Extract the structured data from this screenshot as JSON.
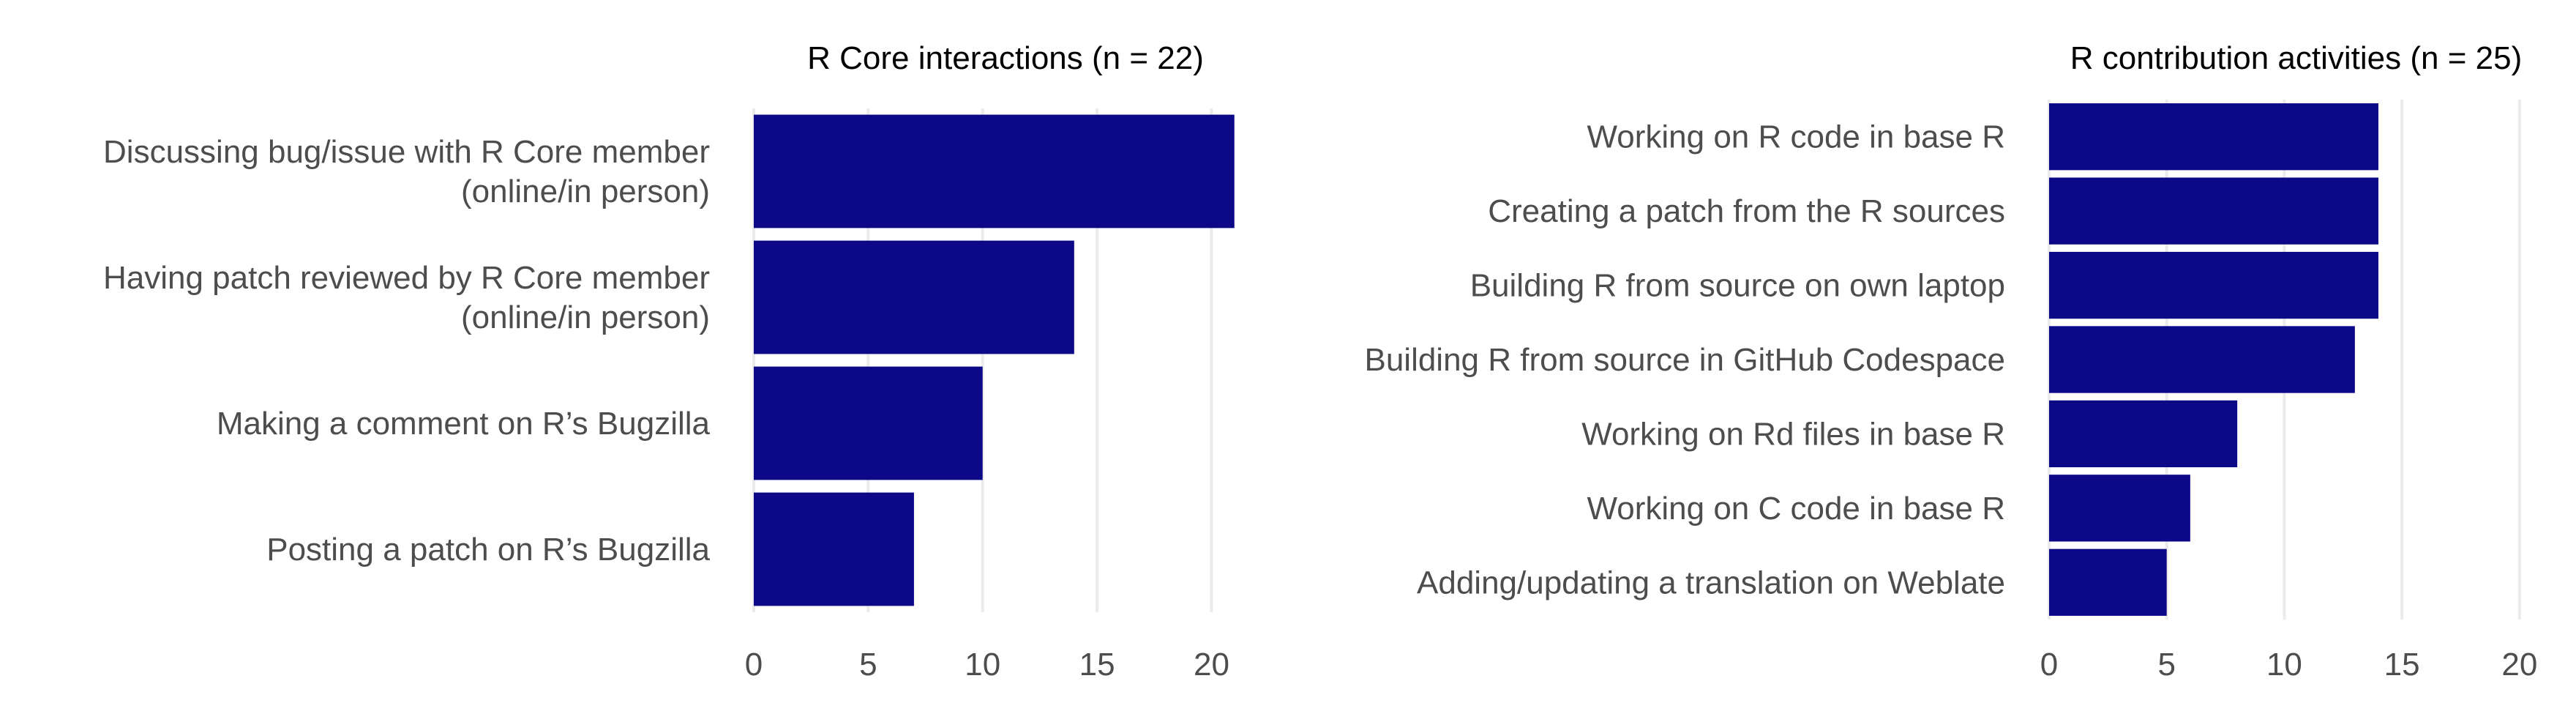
{
  "chart_data": [
    {
      "type": "bar",
      "orientation": "horizontal",
      "title": "R Core interactions (n = 22)",
      "categories": [
        [
          "Discussing bug/issue with R Core member",
          "(online/in person)"
        ],
        [
          "Having patch reviewed by R Core member",
          "(online/in person)"
        ],
        [
          "Making a comment on R’s Bugzilla"
        ],
        [
          "Posting a patch on R’s Bugzilla"
        ]
      ],
      "values": [
        21,
        14,
        10,
        7
      ],
      "xlim": [
        0,
        22
      ],
      "xticks": [
        "0",
        "5",
        "10",
        "15",
        "20"
      ],
      "xlabel": "",
      "ylabel": "",
      "grid": "vertical major",
      "bar_color": "#0d0887"
    },
    {
      "type": "bar",
      "orientation": "horizontal",
      "title": "R contribution activities (n = 25)",
      "categories": [
        [
          "Working on R code in base R"
        ],
        [
          "Creating a patch from the R sources"
        ],
        [
          "Building R from source on own laptop"
        ],
        [
          "Building R from source in GitHub Codespace"
        ],
        [
          "Working on Rd files in base R"
        ],
        [
          "Working on C code in base R"
        ],
        [
          "Adding/updating a translation on Weblate"
        ]
      ],
      "values": [
        14,
        14,
        14,
        13,
        8,
        6,
        5
      ],
      "xlim": [
        0,
        21
      ],
      "xticks": [
        "0",
        "5",
        "10",
        "15",
        "20"
      ],
      "xlabel": "",
      "ylabel": "",
      "grid": "vertical major",
      "bar_color": "#0d0887"
    }
  ]
}
